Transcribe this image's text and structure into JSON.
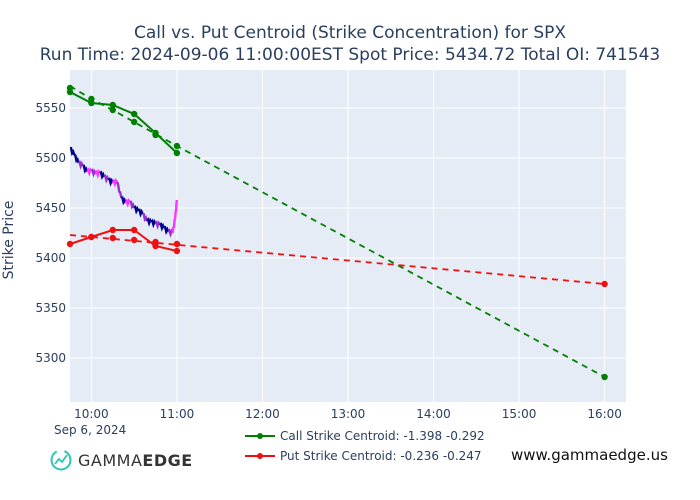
{
  "colors": {
    "call": "#008000",
    "put": "#ee1111",
    "plot_bg": "#e5ecf6",
    "grid": "#ffffff",
    "price_up": "#ff33ff",
    "price_dn": "#00008b",
    "price_mid": "#9a2fd0"
  },
  "chart_data": {
    "type": "line",
    "title": "Call vs. Put Centroid (Strike Concentration) for SPX",
    "subtitle": "Run Time: 2024-09-06 11:00:00EST Spot Price: 5434.72 Total OI: 741543",
    "xlabel": "",
    "date_label": "Sep 6, 2024",
    "ylabel": "Strike Price",
    "xlim": [
      9.75,
      16.25
    ],
    "ylim": [
      5256,
      5588
    ],
    "xticks": [
      {
        "v": 10,
        "label": "10:00"
      },
      {
        "v": 11,
        "label": "11:00"
      },
      {
        "v": 12,
        "label": "12:00"
      },
      {
        "v": 13,
        "label": "13:00"
      },
      {
        "v": 14,
        "label": "14:00"
      },
      {
        "v": 15,
        "label": "15:00"
      },
      {
        "v": 16,
        "label": "16:00"
      }
    ],
    "yticks": [
      5300,
      5350,
      5400,
      5450,
      5500,
      5550
    ],
    "series": [
      {
        "name": "Call Strike Centroid: -1.398 -0.292",
        "role": "call",
        "x": [
          9.75,
          10.0,
          10.25,
          10.5,
          10.75,
          11.0
        ],
        "values": [
          5566,
          5555,
          5553,
          5544,
          5525,
          5505
        ],
        "markers_x": [
          9.75,
          10.0,
          10.25,
          10.5,
          10.75,
          11.0,
          9.75,
          10.0,
          10.25,
          10.5,
          10.75,
          11.0,
          16.0
        ],
        "markers_y": [
          5570,
          5559,
          5548,
          5536,
          5523,
          5512,
          5566,
          5555,
          5553,
          5544,
          5525,
          5505,
          5281
        ],
        "fit_x": [
          9.75,
          10.0,
          10.25,
          10.5,
          10.75,
          11.0,
          16.0
        ],
        "fit_y": [
          5572,
          5559,
          5548,
          5536,
          5524,
          5512,
          5281
        ]
      },
      {
        "name": "Put Strike Centroid: -0.236 -0.247",
        "role": "put",
        "x": [
          9.75,
          10.0,
          10.25,
          10.5,
          10.75,
          11.0
        ],
        "values": [
          5414,
          5421,
          5428,
          5428,
          5412,
          5407
        ],
        "markers_x": [
          9.75,
          10.0,
          10.25,
          10.5,
          10.75,
          11.0,
          10.0,
          10.25,
          10.5,
          10.75,
          11.0,
          16.0
        ],
        "markers_y": [
          5414,
          5421,
          5428,
          5428,
          5412,
          5407,
          5421,
          5420,
          5418,
          5416,
          5414,
          5374
        ],
        "fit_x": [
          9.75,
          16.0
        ],
        "fit_y": [
          5423,
          5374
        ]
      }
    ],
    "price_series": {
      "name": "SPX price",
      "x": [
        9.75,
        9.8,
        9.85,
        9.9,
        9.95,
        10.0,
        10.05,
        10.1,
        10.15,
        10.2,
        10.25,
        10.3,
        10.35,
        10.4,
        10.45,
        10.5,
        10.55,
        10.6,
        10.65,
        10.7,
        10.75,
        10.8,
        10.85,
        10.9,
        10.95,
        10.98,
        11.0
      ],
      "values": [
        5510,
        5503,
        5495,
        5492,
        5486,
        5487,
        5484,
        5485,
        5481,
        5478,
        5475,
        5476,
        5460,
        5455,
        5456,
        5450,
        5447,
        5444,
        5437,
        5436,
        5434,
        5433,
        5430,
        5426,
        5425,
        5440,
        5458
      ]
    },
    "legend": "bottom-center"
  },
  "brand": {
    "name_light": "GAMMA",
    "name_bold": "EDGE",
    "website": "www.gammaedge.us"
  }
}
